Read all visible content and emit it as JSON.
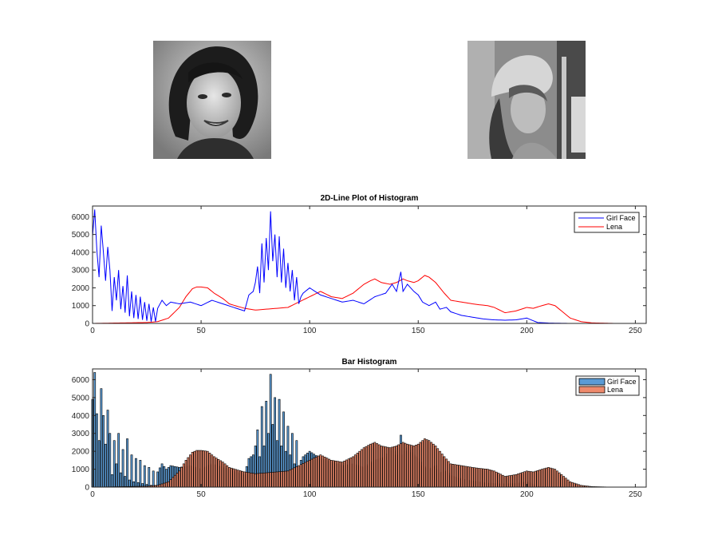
{
  "colors": {
    "girl_line": "#0000ff",
    "lena_line": "#ff0000",
    "girl_bar": "#5b9bd5",
    "lena_bar": "#ee8a6c",
    "axis": "#262626"
  },
  "images": [
    {
      "name": "girl-face-photo",
      "description_icon": "grayscale-portrait-woman-curly-hair"
    },
    {
      "name": "lena-photo",
      "description_icon": "grayscale-portrait-woman-hat"
    }
  ],
  "chart_data": [
    {
      "type": "line",
      "title": "2D-Line Plot of Histogram",
      "xlabel": "",
      "ylabel": "",
      "xlim": [
        0,
        255
      ],
      "ylim": [
        0,
        6600
      ],
      "xticks": [
        0,
        50,
        100,
        150,
        200,
        250
      ],
      "yticks": [
        0,
        1000,
        2000,
        3000,
        4000,
        5000,
        6000
      ],
      "legend_position": "top-right",
      "series": [
        {
          "name": "Girl Face",
          "color": "#0000ff",
          "anchors": [
            [
              0,
              4900
            ],
            [
              1,
              6400
            ],
            [
              2,
              4100
            ],
            [
              3,
              2600
            ],
            [
              4,
              5500
            ],
            [
              5,
              4000
            ],
            [
              6,
              2400
            ],
            [
              7,
              4300
            ],
            [
              8,
              3000
            ],
            [
              9,
              700
            ],
            [
              10,
              2600
            ],
            [
              11,
              1300
            ],
            [
              12,
              3000
            ],
            [
              13,
              800
            ],
            [
              14,
              2100
            ],
            [
              15,
              600
            ],
            [
              16,
              2700
            ],
            [
              17,
              400
            ],
            [
              18,
              1800
            ],
            [
              19,
              300
            ],
            [
              20,
              1600
            ],
            [
              21,
              250
            ],
            [
              22,
              1500
            ],
            [
              23,
              200
            ],
            [
              24,
              1200
            ],
            [
              25,
              150
            ],
            [
              26,
              1100
            ],
            [
              27,
              100
            ],
            [
              28,
              900
            ],
            [
              29,
              100
            ],
            [
              30,
              850
            ],
            [
              32,
              1300
            ],
            [
              34,
              1000
            ],
            [
              36,
              1200
            ],
            [
              40,
              1100
            ],
            [
              45,
              1200
            ],
            [
              50,
              1000
            ],
            [
              55,
              1300
            ],
            [
              60,
              1100
            ],
            [
              65,
              900
            ],
            [
              70,
              700
            ],
            [
              72,
              1600
            ],
            [
              74,
              1800
            ],
            [
              75,
              2300
            ],
            [
              76,
              3200
            ],
            [
              77,
              1700
            ],
            [
              78,
              4500
            ],
            [
              79,
              2300
            ],
            [
              80,
              4800
            ],
            [
              81,
              3000
            ],
            [
              82,
              6300
            ],
            [
              83,
              3500
            ],
            [
              84,
              5000
            ],
            [
              85,
              2600
            ],
            [
              86,
              4900
            ],
            [
              87,
              2300
            ],
            [
              88,
              4200
            ],
            [
              89,
              2000
            ],
            [
              90,
              3400
            ],
            [
              91,
              1800
            ],
            [
              92,
              3000
            ],
            [
              93,
              1300
            ],
            [
              94,
              2600
            ],
            [
              95,
              1100
            ],
            [
              96,
              1500
            ],
            [
              97,
              1700
            ],
            [
              100,
              2000
            ],
            [
              105,
              1600
            ],
            [
              110,
              1400
            ],
            [
              115,
              1200
            ],
            [
              120,
              1300
            ],
            [
              125,
              1100
            ],
            [
              130,
              1500
            ],
            [
              135,
              1700
            ],
            [
              138,
              2200
            ],
            [
              140,
              1800
            ],
            [
              142,
              2900
            ],
            [
              143,
              1800
            ],
            [
              145,
              2200
            ],
            [
              148,
              1800
            ],
            [
              150,
              1600
            ],
            [
              152,
              1200
            ],
            [
              155,
              1000
            ],
            [
              158,
              1200
            ],
            [
              160,
              800
            ],
            [
              163,
              900
            ],
            [
              165,
              650
            ],
            [
              170,
              450
            ],
            [
              175,
              350
            ],
            [
              180,
              250
            ],
            [
              185,
              200
            ],
            [
              190,
              180
            ],
            [
              195,
              200
            ],
            [
              200,
              300
            ],
            [
              205,
              50
            ],
            [
              210,
              20
            ],
            [
              220,
              0
            ],
            [
              255,
              0
            ]
          ]
        },
        {
          "name": "Lena",
          "color": "#ff0000",
          "anchors": [
            [
              0,
              0
            ],
            [
              25,
              50
            ],
            [
              30,
              100
            ],
            [
              35,
              300
            ],
            [
              40,
              900
            ],
            [
              43,
              1500
            ],
            [
              46,
              1950
            ],
            [
              48,
              2050
            ],
            [
              50,
              2050
            ],
            [
              53,
              2000
            ],
            [
              56,
              1700
            ],
            [
              60,
              1400
            ],
            [
              63,
              1100
            ],
            [
              67,
              950
            ],
            [
              70,
              850
            ],
            [
              75,
              750
            ],
            [
              80,
              800
            ],
            [
              85,
              850
            ],
            [
              90,
              900
            ],
            [
              95,
              1200
            ],
            [
              100,
              1500
            ],
            [
              105,
              1800
            ],
            [
              110,
              1500
            ],
            [
              115,
              1400
            ],
            [
              120,
              1700
            ],
            [
              125,
              2200
            ],
            [
              128,
              2400
            ],
            [
              130,
              2500
            ],
            [
              133,
              2300
            ],
            [
              137,
              2200
            ],
            [
              140,
              2300
            ],
            [
              143,
              2500
            ],
            [
              145,
              2400
            ],
            [
              148,
              2300
            ],
            [
              150,
              2400
            ],
            [
              153,
              2700
            ],
            [
              155,
              2600
            ],
            [
              158,
              2300
            ],
            [
              162,
              1700
            ],
            [
              165,
              1300
            ],
            [
              170,
              1200
            ],
            [
              175,
              1100
            ],
            [
              178,
              1050
            ],
            [
              182,
              1000
            ],
            [
              185,
              900
            ],
            [
              190,
              600
            ],
            [
              195,
              700
            ],
            [
              200,
              900
            ],
            [
              203,
              850
            ],
            [
              207,
              1000
            ],
            [
              210,
              1100
            ],
            [
              213,
              1000
            ],
            [
              216,
              700
            ],
            [
              220,
              300
            ],
            [
              225,
              100
            ],
            [
              230,
              30
            ],
            [
              240,
              0
            ],
            [
              255,
              0
            ]
          ]
        }
      ]
    },
    {
      "type": "bar",
      "title": "Bar Histogram",
      "xlabel": "",
      "ylabel": "",
      "xlim": [
        0,
        255
      ],
      "ylim": [
        0,
        6600
      ],
      "xticks": [
        0,
        50,
        100,
        150,
        200,
        250
      ],
      "yticks": [
        0,
        1000,
        2000,
        3000,
        4000,
        5000,
        6000
      ],
      "legend_position": "top-right",
      "series": [
        {
          "name": "Girl Face",
          "color": "#5b9bd5",
          "same_values_as": "2D-Line Plot of Histogram / Girl Face"
        },
        {
          "name": "Lena",
          "color": "#ee8a6c",
          "same_values_as": "2D-Line Plot of Histogram / Lena"
        }
      ]
    }
  ]
}
